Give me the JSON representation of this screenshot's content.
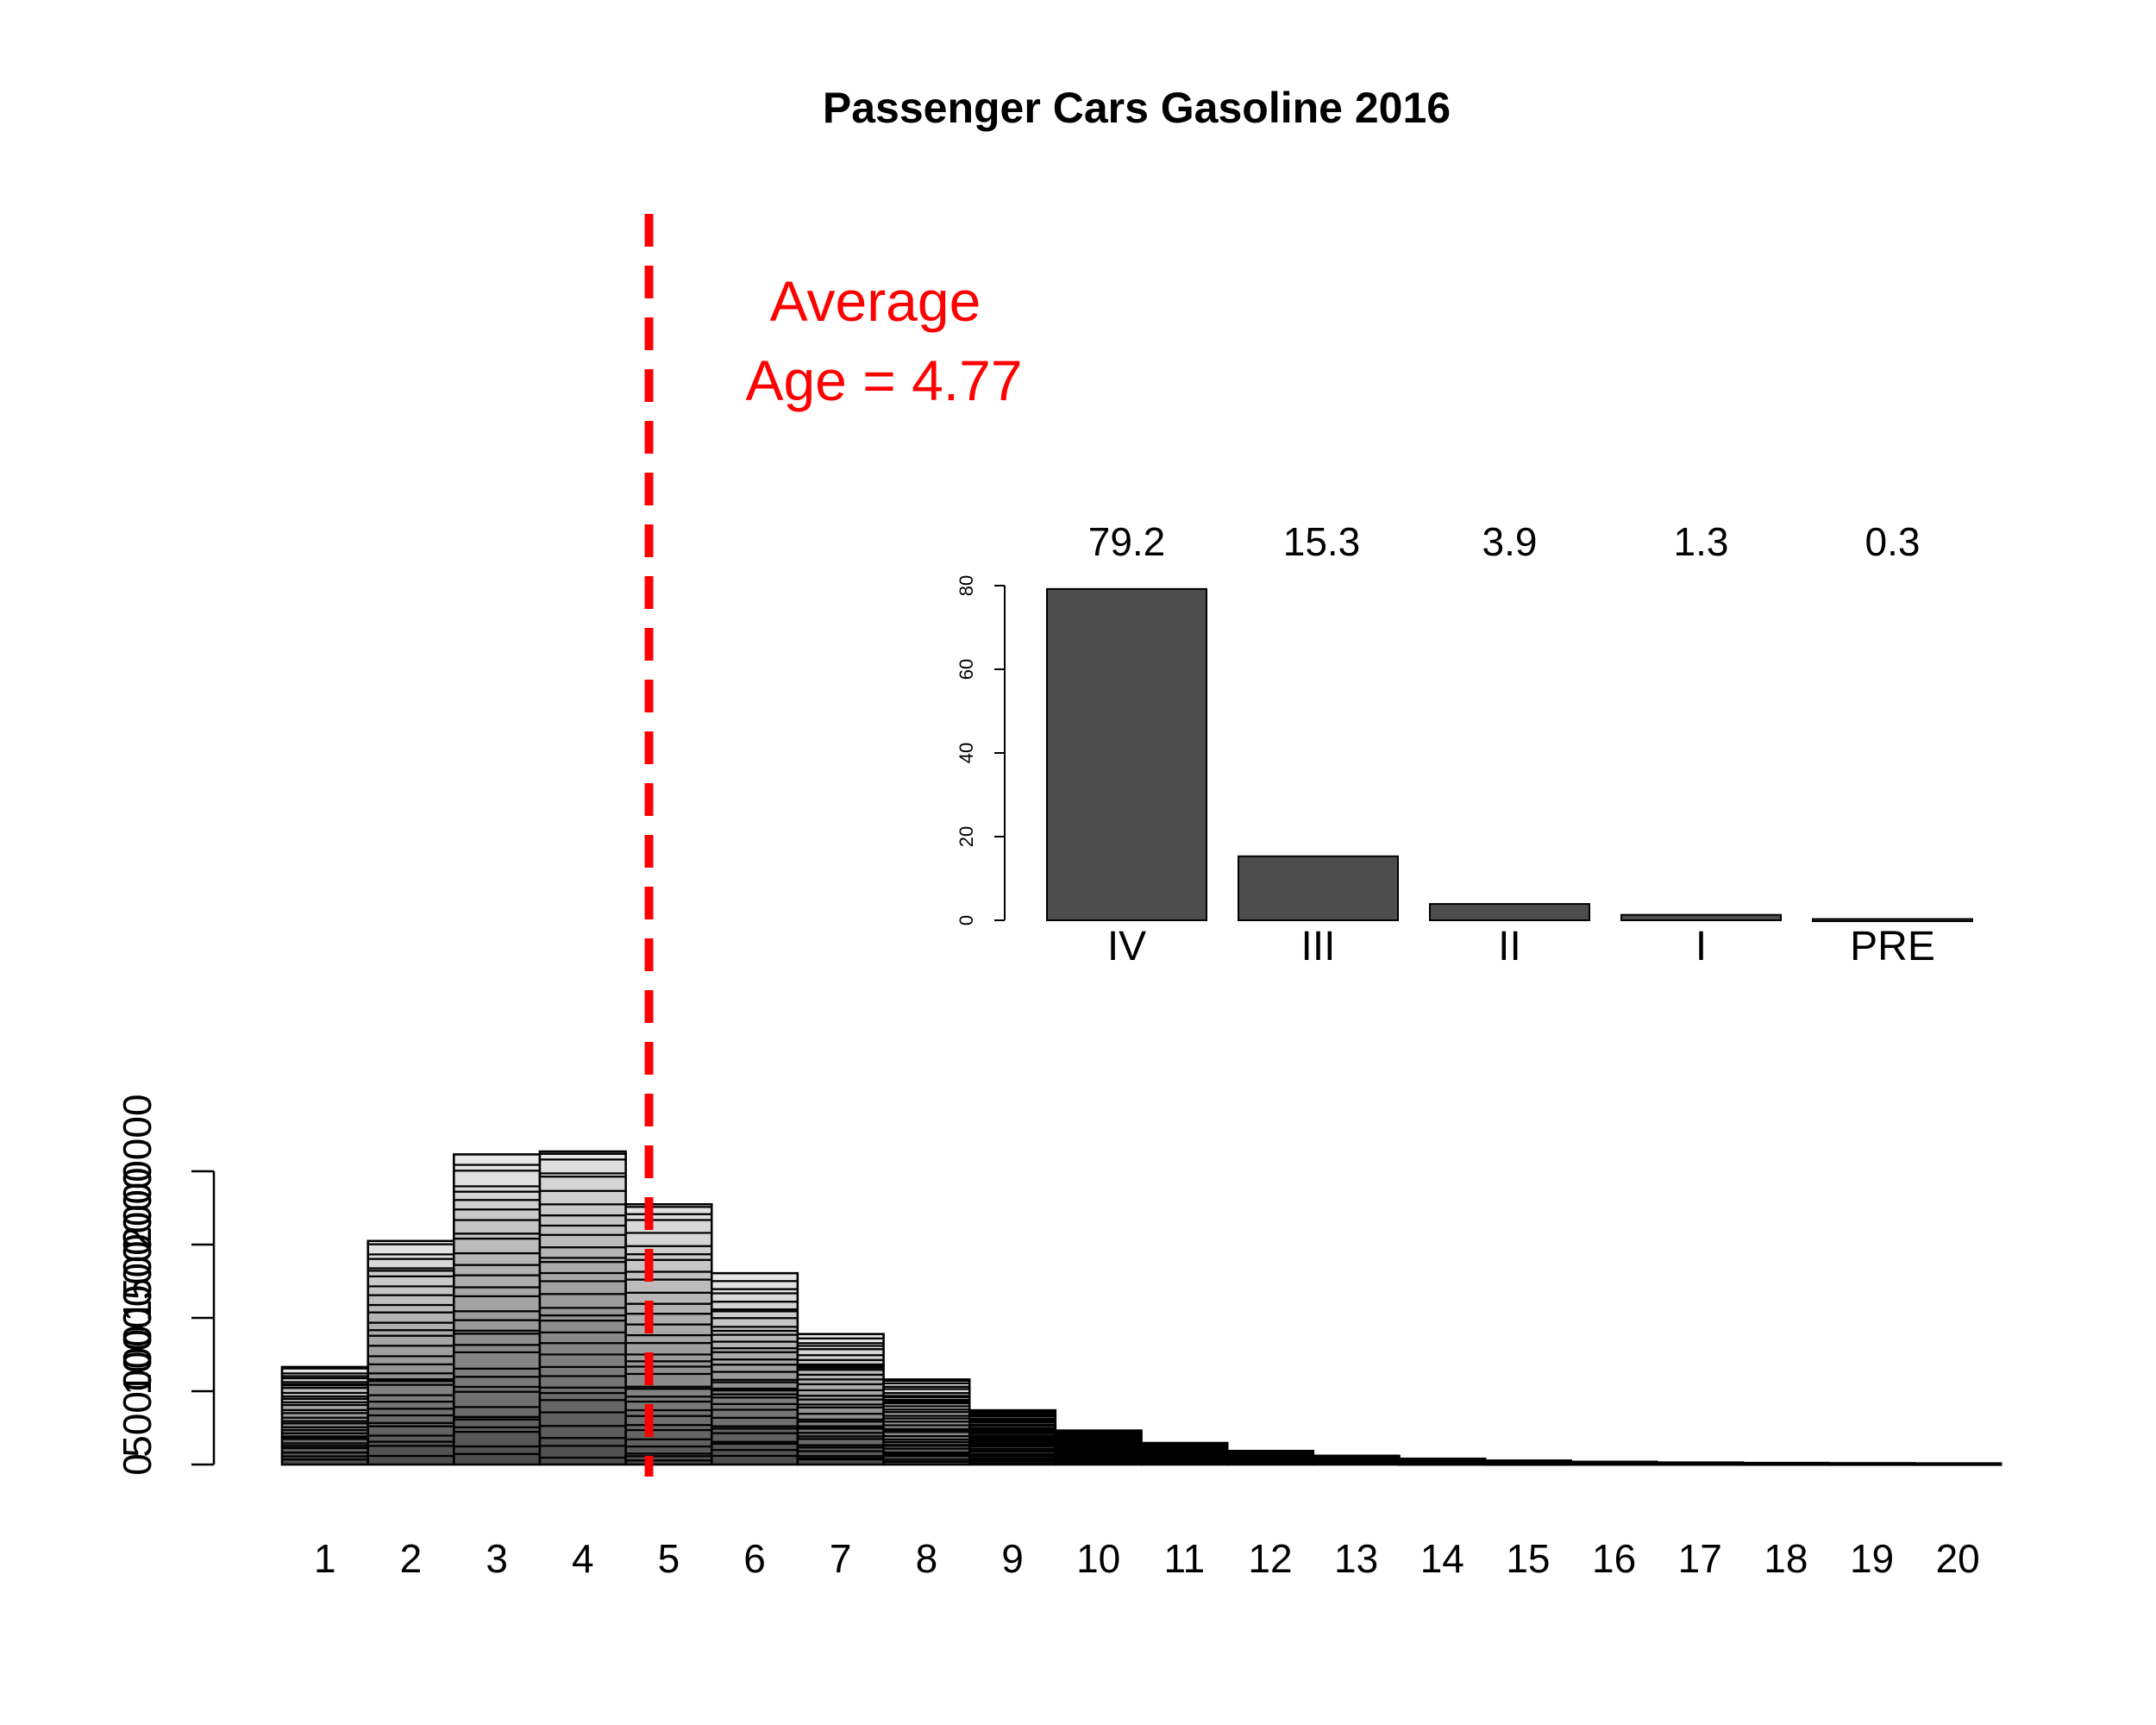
{
  "chart_data": [
    {
      "type": "bar",
      "stacked": true,
      "title": "Passenger Cars Gasoline 2016",
      "xlabel": "",
      "ylabel": "",
      "categories": [
        "1",
        "2",
        "3",
        "4",
        "5",
        "6",
        "7",
        "8",
        "9",
        "10",
        "11",
        "12",
        "13",
        "14",
        "15",
        "16",
        "17",
        "18",
        "19",
        "20"
      ],
      "values": [
        665000,
        1525000,
        2115000,
        2135000,
        1775000,
        1305000,
        890000,
        580000,
        370000,
        232000,
        147000,
        93000,
        60000,
        40000,
        27000,
        19000,
        14000,
        11000,
        9000,
        8000
      ],
      "ylim": [
        0,
        2150000
      ],
      "yticks": [
        0,
        500000,
        1000000,
        1500000,
        2000000
      ],
      "ytick_labels": [
        "0",
        "500000",
        "1000000",
        "1500000",
        "2000000"
      ],
      "colors": {
        "darkest": "#4d4d4d",
        "lightest": "#e8e8e8",
        "segment_edge": "#000000"
      },
      "average_line": {
        "x": 4.77,
        "color": "#ff0000",
        "style": "dashed"
      },
      "annotation": [
        "Average",
        "Age = 4.77"
      ],
      "grid": false
    },
    {
      "type": "bar",
      "inset": true,
      "categories": [
        "IV",
        "III",
        "II",
        "I",
        "PRE"
      ],
      "values": [
        79.2,
        15.3,
        3.9,
        1.3,
        0.3
      ],
      "value_labels": [
        "79.2",
        "15.3",
        "3.9",
        "1.3",
        "0.3"
      ],
      "ylim": [
        0,
        80
      ],
      "yticks": [
        0,
        20,
        40,
        60,
        80
      ],
      "ytick_labels": [
        "0",
        "20",
        "40",
        "60",
        "80"
      ],
      "bar_color": "#4d4d4d",
      "grid": false
    }
  ]
}
